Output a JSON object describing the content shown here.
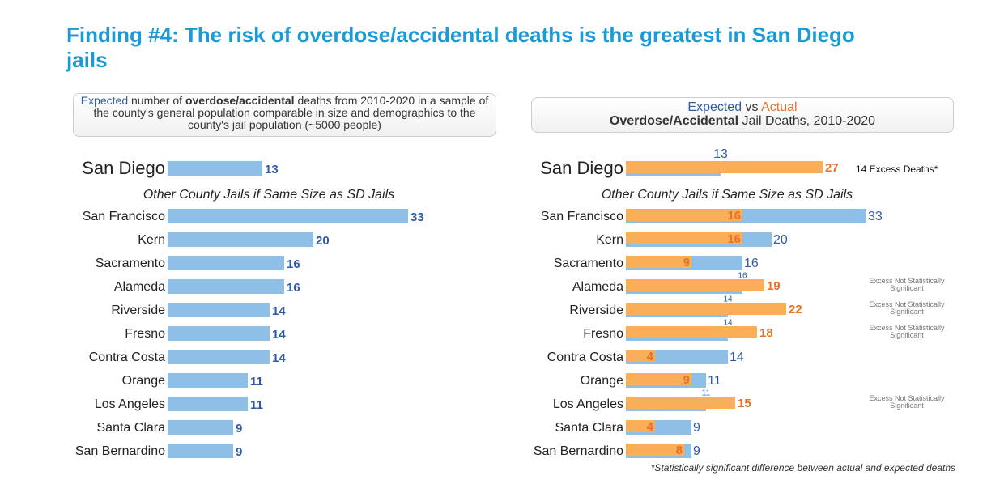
{
  "title": "Finding #4: The risk of overdose/accidental deaths is the greatest in San Diego jails",
  "chart_data": [
    {
      "type": "bar",
      "caption": [
        "Expected",
        " number of ",
        "overdose/accidental",
        " deaths from 2010-2020 in a sample of the county's general population comparable in size and demographics to the county's jail population (~5000 people)"
      ],
      "group_label": "Other County Jails if Same Size as SD Jails",
      "categories": [
        "San Diego",
        "San Francisco",
        "Kern",
        "Sacramento",
        "Alameda",
        "Riverside",
        "Fresno",
        "Contra Costa",
        "Orange",
        "Los Angeles",
        "Santa Clara",
        "San Bernardino"
      ],
      "series": [
        {
          "color": "#8ebfe7",
          "label_color": "#2e5ba8",
          "values": [
            13,
            33,
            20,
            16,
            16,
            14,
            14,
            14,
            11,
            11,
            9,
            9
          ]
        }
      ]
    },
    {
      "type": "bar",
      "title": [
        [
          "Expected",
          " vs ",
          "Actual"
        ],
        [
          "Overdose/Accidental",
          " Jail Deaths, 2010-2020"
        ]
      ],
      "group_label": "Other County Jails if Same Size as SD Jails",
      "categories": [
        "San Diego",
        "San Francisco",
        "Kern",
        "Sacramento",
        "Alameda",
        "Riverside",
        "Fresno",
        "Contra Costa",
        "Orange",
        "Los Angeles",
        "Santa Clara",
        "San Bernardino"
      ],
      "series": [
        {
          "color": "#8ebfe7",
          "label_color": "#2e5ba8",
          "values": [
            13,
            33,
            20,
            16,
            16,
            14,
            14,
            14,
            11,
            11,
            9,
            9
          ]
        },
        {
          "color": "#f9ae57",
          "label_color": "#e8702a",
          "values": [
            27,
            16,
            16,
            9,
            19,
            22,
            18,
            4,
            9,
            15,
            4,
            8
          ]
        }
      ],
      "annotations": [
        "14 Excess Deaths*",
        null,
        null,
        null,
        "Excess Not Statistically Significant",
        "Excess Not Statistically Significant",
        "Excess Not Statistically Significant",
        null,
        null,
        "Excess Not Statistically Significant",
        null,
        null
      ],
      "footnote": "*Statistically significant difference between actual and expected deaths"
    }
  ]
}
